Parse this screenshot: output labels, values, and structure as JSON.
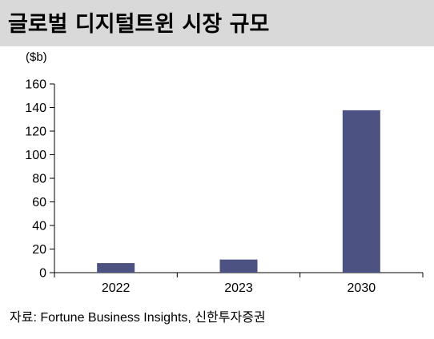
{
  "header": {
    "title": "글로벌 디지털트윈 시장 규모"
  },
  "chart_data": {
    "type": "bar",
    "unit_label": "($b)",
    "categories": [
      "2022",
      "2023",
      "2030"
    ],
    "series": [
      {
        "values": [
          8.1,
          11.1,
          137.7
        ]
      }
    ],
    "ylim": [
      0,
      160
    ],
    "yticks": [
      "0",
      "20",
      "40",
      "60",
      "80",
      "100",
      "120",
      "140",
      "160"
    ],
    "bar_color": "#4c5282",
    "grid": false,
    "legend": "none"
  },
  "footer": {
    "source": "자료: Fortune Business Insights, 신한투자증권"
  }
}
